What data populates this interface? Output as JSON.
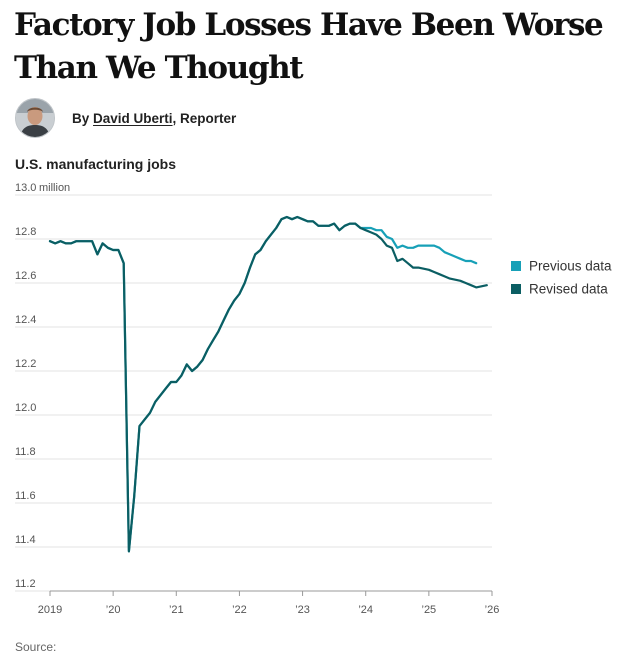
{
  "article": {
    "headline": "Factory Job Losses Have Been Worse Than We Thought",
    "byline_prefix": "By ",
    "author": "David Uberti",
    "author_role": ", Reporter",
    "avatar_icon": "author-photo",
    "source_label": "Source:"
  },
  "colors": {
    "previous": "#17a0b7",
    "revised": "#0b5e63",
    "gridline": "#e3e3e3",
    "tick_text": "#555555"
  },
  "chart_data": {
    "type": "line",
    "title": "U.S. manufacturing jobs",
    "ylabel": "",
    "xlabel": "",
    "unit_label": "13.0 million",
    "ylim": [
      11.2,
      13.0
    ],
    "y_ticks": [
      13.0,
      12.8,
      12.6,
      12.4,
      12.2,
      12.0,
      11.8,
      11.6,
      11.4,
      11.2
    ],
    "y_tick_labels": [
      "13.0",
      "12.8",
      "12.6",
      "12.4",
      "12.2",
      "12.0",
      "11.8",
      "11.6",
      "11.4",
      "11.2"
    ],
    "xlim": [
      2019.0,
      2026.0
    ],
    "x_ticks": [
      2019,
      2020,
      2021,
      2022,
      2023,
      2024,
      2025,
      2026
    ],
    "x_tick_labels": [
      "2019",
      "’20",
      "’21",
      "’22",
      "’23",
      "’24",
      "’25",
      "’26"
    ],
    "grid": "horizontal",
    "legend_placement": "right",
    "series": [
      {
        "name": "Previous data",
        "points": [
          [
            2019.0,
            12.79
          ],
          [
            2019.083,
            12.78
          ],
          [
            2019.167,
            12.79
          ],
          [
            2019.25,
            12.78
          ],
          [
            2019.333,
            12.78
          ],
          [
            2019.417,
            12.79
          ],
          [
            2019.5,
            12.79
          ],
          [
            2019.583,
            12.79
          ],
          [
            2019.667,
            12.79
          ],
          [
            2019.75,
            12.73
          ],
          [
            2019.833,
            12.78
          ],
          [
            2019.917,
            12.76
          ],
          [
            2020.0,
            12.75
          ],
          [
            2020.083,
            12.75
          ],
          [
            2020.167,
            12.69
          ],
          [
            2020.25,
            11.38
          ],
          [
            2020.333,
            11.63
          ],
          [
            2020.417,
            11.95
          ],
          [
            2020.5,
            11.98
          ],
          [
            2020.583,
            12.01
          ],
          [
            2020.667,
            12.06
          ],
          [
            2020.75,
            12.09
          ],
          [
            2020.833,
            12.12
          ],
          [
            2020.917,
            12.15
          ],
          [
            2021.0,
            12.15
          ],
          [
            2021.083,
            12.18
          ],
          [
            2021.167,
            12.23
          ],
          [
            2021.25,
            12.2
          ],
          [
            2021.333,
            12.22
          ],
          [
            2021.417,
            12.25
          ],
          [
            2021.5,
            12.3
          ],
          [
            2021.583,
            12.34
          ],
          [
            2021.667,
            12.38
          ],
          [
            2021.75,
            12.43
          ],
          [
            2021.833,
            12.48
          ],
          [
            2021.917,
            12.52
          ],
          [
            2022.0,
            12.55
          ],
          [
            2022.083,
            12.6
          ],
          [
            2022.167,
            12.67
          ],
          [
            2022.25,
            12.73
          ],
          [
            2022.333,
            12.75
          ],
          [
            2022.417,
            12.79
          ],
          [
            2022.5,
            12.82
          ],
          [
            2022.583,
            12.85
          ],
          [
            2022.667,
            12.89
          ],
          [
            2022.75,
            12.9
          ],
          [
            2022.833,
            12.89
          ],
          [
            2022.917,
            12.9
          ],
          [
            2023.0,
            12.89
          ],
          [
            2023.083,
            12.88
          ],
          [
            2023.167,
            12.88
          ],
          [
            2023.25,
            12.86
          ],
          [
            2023.333,
            12.86
          ],
          [
            2023.417,
            12.86
          ],
          [
            2023.5,
            12.87
          ],
          [
            2023.583,
            12.84
          ],
          [
            2023.667,
            12.86
          ],
          [
            2023.75,
            12.87
          ],
          [
            2023.833,
            12.87
          ],
          [
            2023.917,
            12.85
          ],
          [
            2024.0,
            12.85
          ],
          [
            2024.083,
            12.85
          ],
          [
            2024.167,
            12.84
          ],
          [
            2024.25,
            12.84
          ],
          [
            2024.333,
            12.81
          ],
          [
            2024.417,
            12.8
          ],
          [
            2024.5,
            12.76
          ],
          [
            2024.583,
            12.77
          ],
          [
            2024.667,
            12.76
          ],
          [
            2024.75,
            12.76
          ],
          [
            2024.833,
            12.77
          ],
          [
            2024.917,
            12.77
          ],
          [
            2025.0,
            12.77
          ],
          [
            2025.083,
            12.77
          ],
          [
            2025.167,
            12.76
          ],
          [
            2025.25,
            12.74
          ],
          [
            2025.333,
            12.73
          ],
          [
            2025.417,
            12.72
          ],
          [
            2025.5,
            12.71
          ],
          [
            2025.583,
            12.7
          ],
          [
            2025.667,
            12.7
          ],
          [
            2025.75,
            12.69
          ]
        ]
      },
      {
        "name": "Revised data",
        "points": [
          [
            2019.0,
            12.79
          ],
          [
            2019.083,
            12.78
          ],
          [
            2019.167,
            12.79
          ],
          [
            2019.25,
            12.78
          ],
          [
            2019.333,
            12.78
          ],
          [
            2019.417,
            12.79
          ],
          [
            2019.5,
            12.79
          ],
          [
            2019.583,
            12.79
          ],
          [
            2019.667,
            12.79
          ],
          [
            2019.75,
            12.73
          ],
          [
            2019.833,
            12.78
          ],
          [
            2019.917,
            12.76
          ],
          [
            2020.0,
            12.75
          ],
          [
            2020.083,
            12.75
          ],
          [
            2020.167,
            12.69
          ],
          [
            2020.25,
            11.38
          ],
          [
            2020.333,
            11.63
          ],
          [
            2020.417,
            11.95
          ],
          [
            2020.5,
            11.98
          ],
          [
            2020.583,
            12.01
          ],
          [
            2020.667,
            12.06
          ],
          [
            2020.75,
            12.09
          ],
          [
            2020.833,
            12.12
          ],
          [
            2020.917,
            12.15
          ],
          [
            2021.0,
            12.15
          ],
          [
            2021.083,
            12.18
          ],
          [
            2021.167,
            12.23
          ],
          [
            2021.25,
            12.2
          ],
          [
            2021.333,
            12.22
          ],
          [
            2021.417,
            12.25
          ],
          [
            2021.5,
            12.3
          ],
          [
            2021.583,
            12.34
          ],
          [
            2021.667,
            12.38
          ],
          [
            2021.75,
            12.43
          ],
          [
            2021.833,
            12.48
          ],
          [
            2021.917,
            12.52
          ],
          [
            2022.0,
            12.55
          ],
          [
            2022.083,
            12.6
          ],
          [
            2022.167,
            12.67
          ],
          [
            2022.25,
            12.73
          ],
          [
            2022.333,
            12.75
          ],
          [
            2022.417,
            12.79
          ],
          [
            2022.5,
            12.82
          ],
          [
            2022.583,
            12.85
          ],
          [
            2022.667,
            12.89
          ],
          [
            2022.75,
            12.9
          ],
          [
            2022.833,
            12.89
          ],
          [
            2022.917,
            12.9
          ],
          [
            2023.0,
            12.89
          ],
          [
            2023.083,
            12.88
          ],
          [
            2023.167,
            12.88
          ],
          [
            2023.25,
            12.86
          ],
          [
            2023.333,
            12.86
          ],
          [
            2023.417,
            12.86
          ],
          [
            2023.5,
            12.87
          ],
          [
            2023.583,
            12.84
          ],
          [
            2023.667,
            12.86
          ],
          [
            2023.75,
            12.87
          ],
          [
            2023.833,
            12.87
          ],
          [
            2023.917,
            12.85
          ],
          [
            2024.0,
            12.84
          ],
          [
            2024.083,
            12.83
          ],
          [
            2024.167,
            12.82
          ],
          [
            2024.25,
            12.8
          ],
          [
            2024.333,
            12.77
          ],
          [
            2024.417,
            12.76
          ],
          [
            2024.5,
            12.7
          ],
          [
            2024.583,
            12.71
          ],
          [
            2024.667,
            12.69
          ],
          [
            2024.75,
            12.67
          ],
          [
            2024.833,
            12.67
          ],
          [
            2024.917,
            12.665
          ],
          [
            2025.0,
            12.66
          ],
          [
            2025.083,
            12.65
          ],
          [
            2025.167,
            12.64
          ],
          [
            2025.25,
            12.63
          ],
          [
            2025.333,
            12.62
          ],
          [
            2025.417,
            12.615
          ],
          [
            2025.5,
            12.61
          ],
          [
            2025.583,
            12.6
          ],
          [
            2025.667,
            12.59
          ],
          [
            2025.75,
            12.58
          ],
          [
            2025.833,
            12.585
          ],
          [
            2025.917,
            12.59
          ]
        ]
      }
    ]
  }
}
